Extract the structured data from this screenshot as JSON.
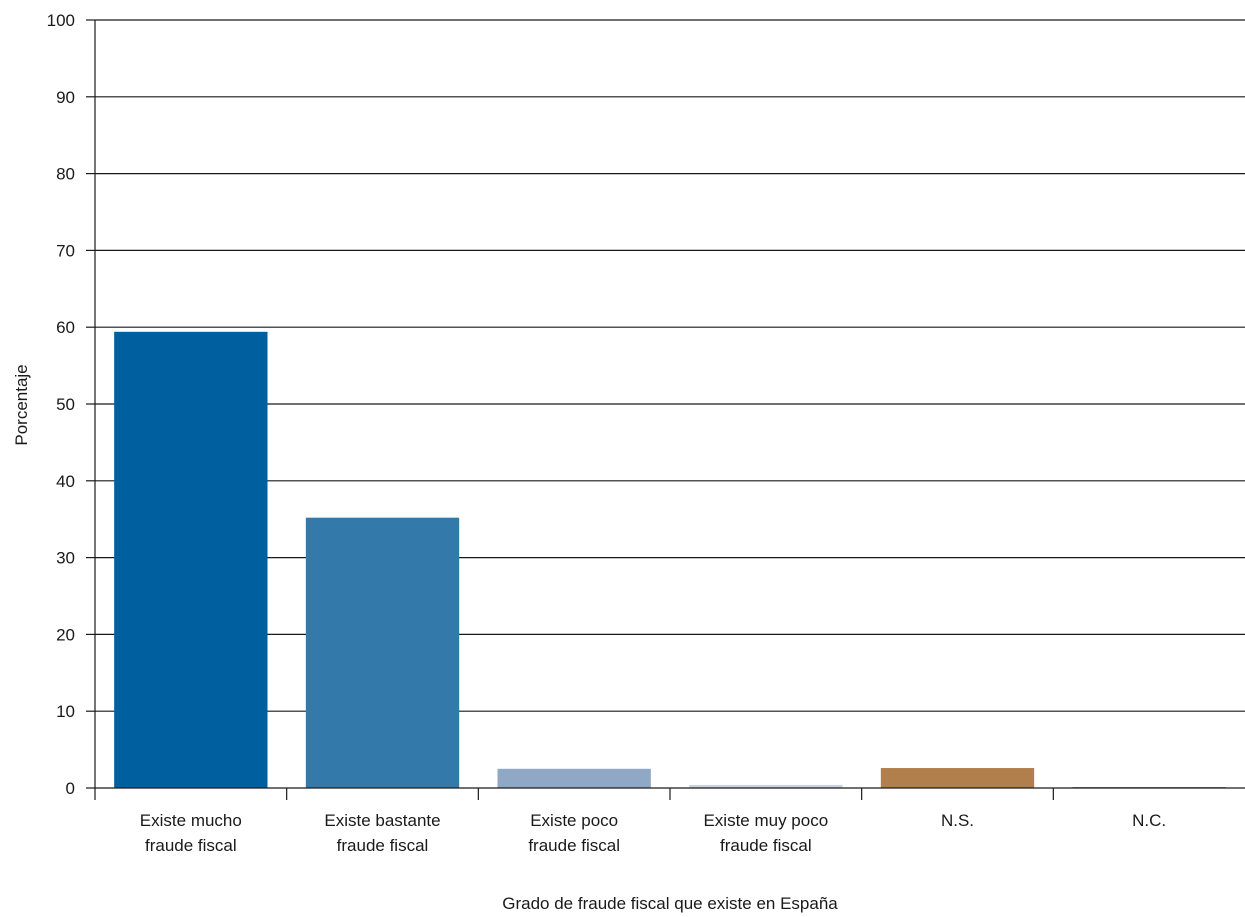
{
  "chart_data": {
    "type": "bar",
    "title": "",
    "xlabel": "Grado de fraude fiscal que existe en España",
    "ylabel": "Porcentaje",
    "ylim": [
      0,
      100
    ],
    "yticks": [
      0,
      10,
      20,
      30,
      40,
      50,
      60,
      70,
      80,
      90,
      100
    ],
    "grid": true,
    "legend": "none",
    "categories": [
      [
        "Existe mucho",
        "fraude fiscal"
      ],
      [
        "Existe bastante",
        "fraude fiscal"
      ],
      [
        "Existe poco",
        "fraude fiscal"
      ],
      [
        "Existe muy poco",
        "fraude fiscal"
      ],
      [
        "N.S."
      ],
      [
        "N.C."
      ]
    ],
    "values": [
      59.4,
      35.2,
      2.5,
      0.4,
      2.6,
      0.1
    ],
    "colors": [
      "#005f9e",
      "#337aaa",
      "#8fa8c6",
      "#c9d3e0",
      "#b07f4c",
      "#4a4a4a"
    ]
  }
}
